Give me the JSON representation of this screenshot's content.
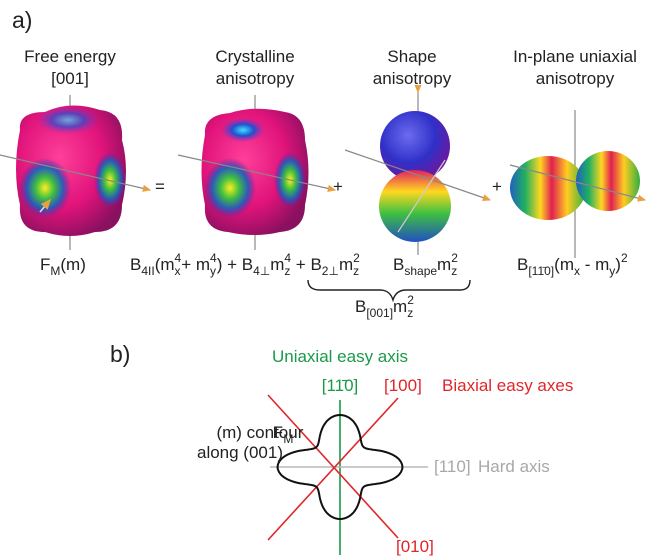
{
  "panel_a": {
    "label": "a)",
    "columns": [
      {
        "title": [
          "Free energy",
          "[001]"
        ]
      },
      {
        "title": [
          "Crystalline",
          "anisotropy"
        ]
      },
      {
        "title": [
          "Shape",
          "anisotropy"
        ]
      },
      {
        "title": [
          "In-plane uniaxial",
          "anisotropy"
        ]
      }
    ],
    "operators": [
      "=",
      "+",
      "+"
    ],
    "formulas": [
      {
        "segments": [
          {
            "base": "F"
          },
          {
            "sub": "M"
          },
          {
            "base": "(m)"
          }
        ]
      },
      {
        "segments": [
          {
            "base": "B"
          },
          {
            "sub": "4II"
          },
          {
            "base": "(m"
          },
          {
            "sub": "x"
          },
          {
            "sup": "4"
          },
          {
            "base": "+ m"
          },
          {
            "sub": "y"
          },
          {
            "sup": "4"
          },
          {
            "base": ") + B"
          },
          {
            "sub": "4⊥"
          },
          {
            "base": "m"
          },
          {
            "sub": "z"
          },
          {
            "sup": "4"
          },
          {
            "base": " + B"
          },
          {
            "sub": "2⊥"
          },
          {
            "base": "m"
          },
          {
            "sub": "z"
          },
          {
            "sup": "2"
          }
        ]
      },
      {
        "segments": [
          {
            "base": "B"
          },
          {
            "sub": "shape"
          },
          {
            "base": "m"
          },
          {
            "sub": "z"
          },
          {
            "sup": "2"
          }
        ]
      },
      {
        "segments": [
          {
            "base": "B"
          },
          {
            "sub": "[11̄0]"
          },
          {
            "base": "(m"
          },
          {
            "sub": "x"
          },
          {
            "base": " - m"
          },
          {
            "sub": "y"
          },
          {
            "base": ")"
          },
          {
            "sup": "2"
          }
        ]
      },
      {
        "segments": [
          {
            "base": "B"
          },
          {
            "sub": "[001]"
          },
          {
            "base": "m"
          },
          {
            "sub": "z"
          },
          {
            "sup": "2"
          }
        ]
      }
    ]
  },
  "panel_b": {
    "label": "b)",
    "uniaxial_axis": {
      "title": "Uniaxial easy axis",
      "direction": "[11̄0]"
    },
    "biaxial_axes": {
      "title": "Biaxial easy axes",
      "directions": [
        "[100]",
        "[010]"
      ]
    },
    "hard_axis": {
      "title": "Hard axis",
      "direction": "[110]"
    },
    "contour_label": {
      "line1": [
        {
          "base": "F"
        },
        {
          "sub": "M"
        },
        {
          "base": "(m) contour"
        }
      ],
      "line2": "along (001)"
    }
  }
}
